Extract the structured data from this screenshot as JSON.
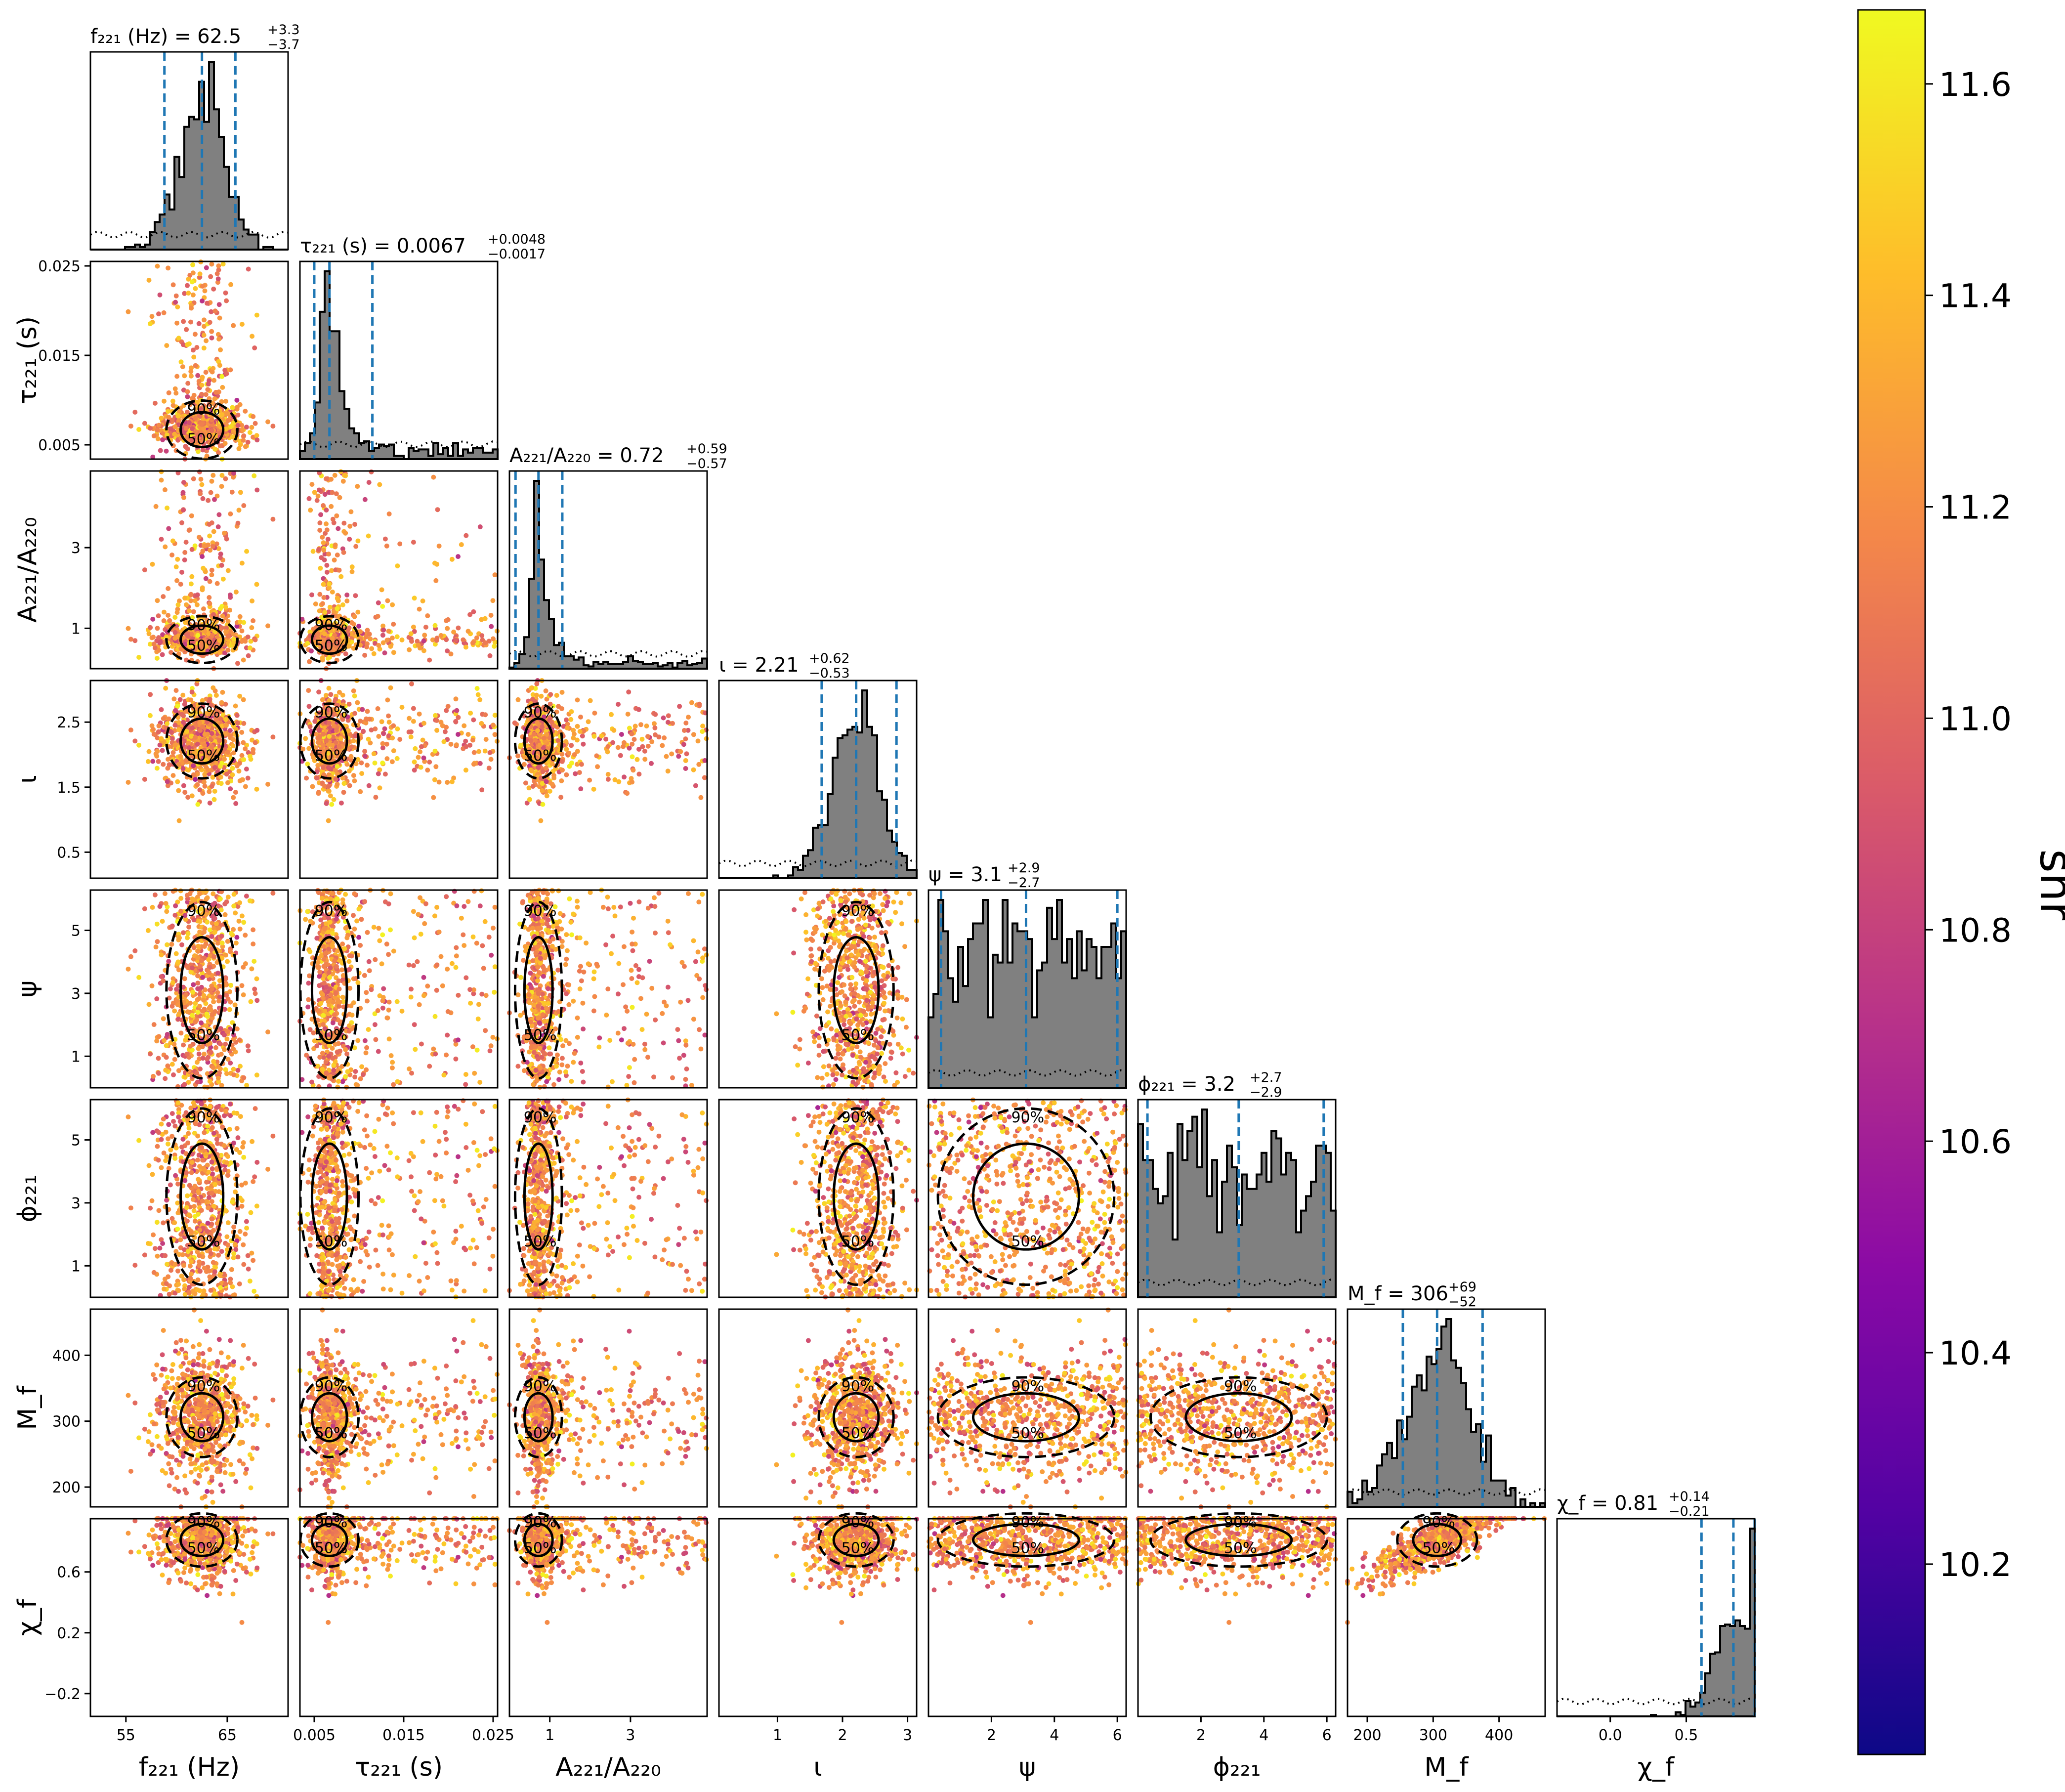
{
  "colors": {
    "background": "#ffffff",
    "hist_fill": "#808080",
    "hist_edge": "#000000",
    "quantile_line": "#1f77b4",
    "contour": "#000000",
    "colormap": [
      "#0d0887",
      "#5302a3",
      "#8b0aa5",
      "#b83289",
      "#db5c68",
      "#f48849",
      "#febd2a",
      "#f0f921"
    ]
  },
  "chart_data": {
    "type": "scatter",
    "subtype": "corner-plot",
    "parameters": [
      {
        "key": "f221",
        "label": "f₂₂₁ (Hz)",
        "range": [
          51.5,
          71.0
        ],
        "ticks": [
          55,
          65
        ],
        "tick_labels": [
          "55",
          "65"
        ],
        "title": "f₂₂₁ (Hz) = 62.5",
        "title_up": "+3.3",
        "title_down": "−3.7",
        "median": 62.5,
        "q_low": 58.8,
        "q_high": 65.8
      },
      {
        "key": "tau221",
        "label": "τ₂₂₁ (s)",
        "range": [
          0.0034,
          0.0255
        ],
        "ticks": [
          0.005,
          0.015,
          0.025
        ],
        "tick_labels": [
          "0.005",
          "0.015",
          "0.025"
        ],
        "title": "τ₂₂₁ (s) = 0.0067",
        "title_up": "+0.0048",
        "title_down": "−0.0017",
        "median": 0.0067,
        "q_low": 0.005,
        "q_high": 0.0115
      },
      {
        "key": "A221A220",
        "label": "A₂₂₁/A₂₂₀",
        "range": [
          0.0,
          4.9
        ],
        "ticks": [
          1,
          3
        ],
        "tick_labels": [
          "1",
          "3"
        ],
        "title": "A₂₂₁/A₂₂₀ = 0.72",
        "title_up": "+0.59",
        "title_down": "−0.57",
        "median": 0.72,
        "q_low": 0.15,
        "q_high": 1.31
      },
      {
        "key": "iota",
        "label": "ι",
        "range": [
          0.1,
          3.14
        ],
        "ticks": [
          0.5,
          1.5,
          2.5
        ],
        "tick_labels": [
          "0.5",
          "1.5",
          "2.5"
        ],
        "x_tick_labels": [
          "1",
          "2",
          "3"
        ],
        "x_ticks": [
          1,
          2,
          3
        ],
        "title": "ι = 2.21",
        "title_up": "+0.62",
        "title_down": "−0.53",
        "median": 2.21,
        "q_low": 1.68,
        "q_high": 2.83
      },
      {
        "key": "psi",
        "label": "ψ",
        "range": [
          0.0,
          6.28
        ],
        "ticks": [
          1,
          3,
          5
        ],
        "tick_labels": [
          "1",
          "3",
          "5"
        ],
        "x_ticks": [
          2,
          4,
          6
        ],
        "x_tick_labels": [
          "2",
          "4",
          "6"
        ],
        "title": "ψ = 3.1",
        "title_up": "+2.9",
        "title_down": "−2.7",
        "median": 3.1,
        "q_low": 0.4,
        "q_high": 6.0
      },
      {
        "key": "phi221",
        "label": "ϕ₂₂₁",
        "range": [
          0.0,
          6.28
        ],
        "ticks": [
          1,
          3,
          5
        ],
        "tick_labels": [
          "1",
          "3",
          "5"
        ],
        "x_ticks": [
          2,
          4,
          6
        ],
        "x_tick_labels": [
          "2",
          "4",
          "6"
        ],
        "title": "ϕ₂₂₁ = 3.2",
        "title_up": "+2.7",
        "title_down": "−2.9",
        "median": 3.2,
        "q_low": 0.3,
        "q_high": 5.9
      },
      {
        "key": "Mf",
        "label": "M_f",
        "range": [
          170,
          470
        ],
        "ticks": [
          200,
          300,
          400
        ],
        "tick_labels": [
          "200",
          "300",
          "400"
        ],
        "title": "M_f = 306",
        "title_up": "+69",
        "title_down": "−52",
        "median": 306,
        "q_low": 254,
        "q_high": 375
      },
      {
        "key": "chif",
        "label": "χ_f",
        "range": [
          -0.35,
          0.95
        ],
        "ticks": [
          -0.2,
          0.2,
          0.6
        ],
        "tick_labels": [
          "−0.2",
          "0.2",
          "0.6"
        ],
        "x_ticks": [
          0.0,
          0.5
        ],
        "x_tick_labels": [
          "0.0",
          "0.5"
        ],
        "title": "χ_f = 0.81",
        "title_up": "+0.14",
        "title_down": "−0.21",
        "median": 0.81,
        "q_low": 0.6,
        "q_high": 0.95
      }
    ],
    "colorbar": {
      "label": "snr",
      "range": [
        10.02,
        11.67
      ],
      "ticks": [
        10.2,
        10.4,
        10.6,
        10.8,
        11.0,
        11.2,
        11.4,
        11.6
      ],
      "tick_labels": [
        "10.2",
        "10.4",
        "10.6",
        "10.8",
        "11.0",
        "11.2",
        "11.4",
        "11.6"
      ]
    },
    "contour_labels": [
      "50%",
      "90%"
    ],
    "grid": false
  }
}
